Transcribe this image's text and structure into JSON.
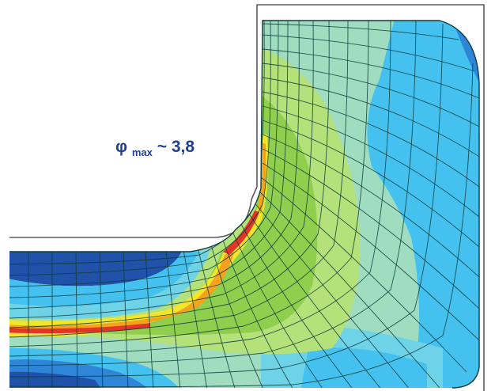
{
  "annotation": {
    "symbol": "φ",
    "subscript": "max",
    "relation": " ~ 3,8"
  },
  "colors": {
    "deep_blue": "#1f52a8",
    "blue": "#2f86d8",
    "sky": "#44c1ee",
    "cyan": "#6fd3e8",
    "aqua": "#8fd9cf",
    "teal": "#9fdcc0",
    "mint": "#a8e0a0",
    "green_light": "#b5e17b",
    "green": "#90cf4e",
    "yellow_green": "#d7ea3f",
    "yellow": "#f3e52a",
    "orange": "#f6a21d",
    "red": "#e3342a",
    "mesh_line": "#0f3c3a",
    "outline": "#5b5b5b"
  }
}
